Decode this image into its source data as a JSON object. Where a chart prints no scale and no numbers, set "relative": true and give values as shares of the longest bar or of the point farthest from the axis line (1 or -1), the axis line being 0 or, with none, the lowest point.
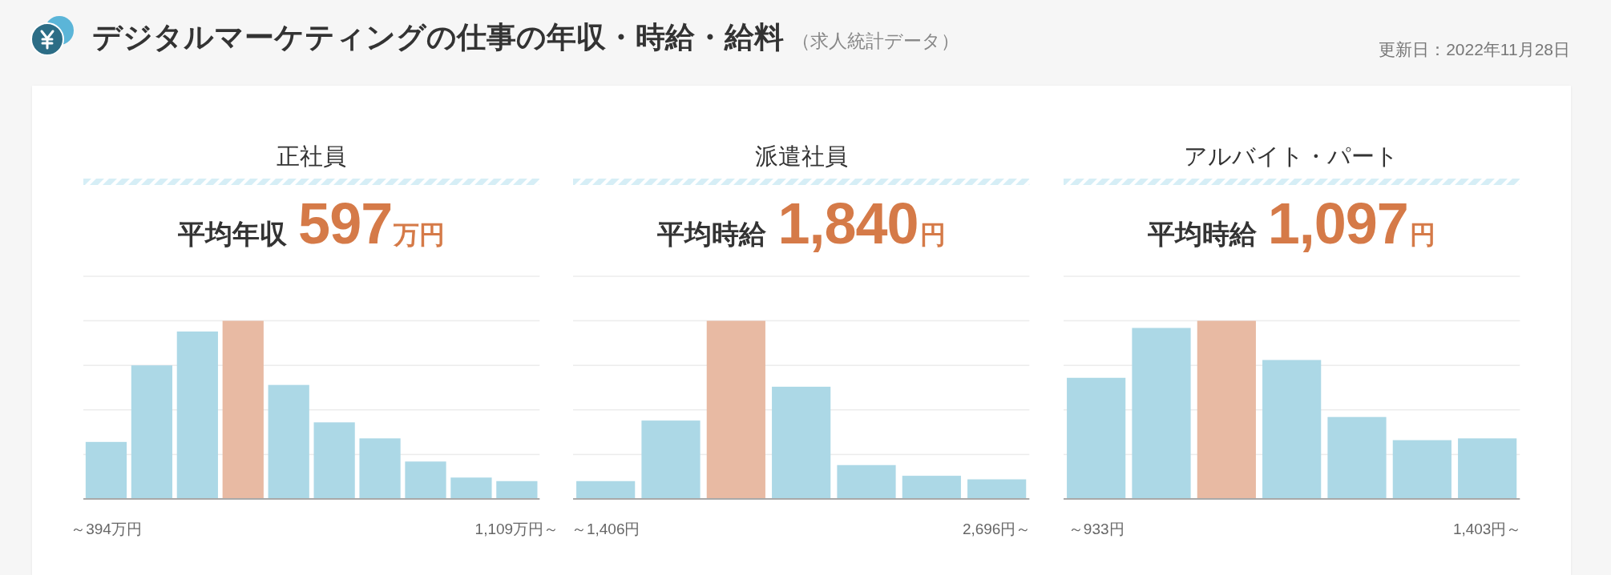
{
  "chart_data": [
    {
      "type": "other",
      "title": "デジタルマーケティングの仕事の年収・時給・給料",
      "subtitle": "（求人統計データ）",
      "annotations": [
        "更新日：2022年11月28日"
      ]
    },
    {
      "type": "bar",
      "title": "正社員",
      "subtitle": "平均年収 597万円",
      "categories": [
        "～394万円",
        null,
        null,
        null,
        null,
        null,
        null,
        null,
        null,
        "1,109万円～"
      ],
      "values": [
        0.32,
        0.75,
        0.94,
        1,
        0.64,
        0.43,
        0.34,
        0.21,
        0.12,
        0.1
      ],
      "colors": [
        "#acd8e6",
        "#acd8e6",
        "#acd8e6",
        "#e8baa3",
        "#acd8e6",
        "#acd8e6",
        "#acd8e6",
        "#acd8e6",
        "#acd8e6",
        "#acd8e6"
      ],
      "relative": true,
      "grid": "y",
      "tick_labels": "x"
    },
    {
      "type": "bar",
      "title": "派遣社員",
      "subtitle": "平均時給 1,840円",
      "categories": [
        "～1,406円",
        null,
        null,
        null,
        null,
        null,
        "2,696円～"
      ],
      "values": [
        0.1,
        0.44,
        1,
        0.63,
        0.19,
        0.13,
        0.11
      ],
      "colors": [
        "#acd8e6",
        "#acd8e6",
        "#e8baa3",
        "#acd8e6",
        "#acd8e6",
        "#acd8e6",
        "#acd8e6"
      ],
      "relative": true,
      "grid": "y",
      "tick_labels": "x"
    },
    {
      "type": "bar",
      "title": "アルバイト・パート",
      "subtitle": "平均時給 1,097円",
      "categories": [
        "～933円",
        null,
        null,
        null,
        null,
        null,
        "1,403円～"
      ],
      "values": [
        0.68,
        0.96,
        1,
        0.78,
        0.46,
        0.33,
        0.34
      ],
      "colors": [
        "#acd8e6",
        "#acd8e6",
        "#e8baa3",
        "#acd8e6",
        "#acd8e6",
        "#acd8e6",
        "#acd8e6"
      ],
      "relative": true,
      "grid": "y",
      "tick_labels": "x"
    }
  ]
}
